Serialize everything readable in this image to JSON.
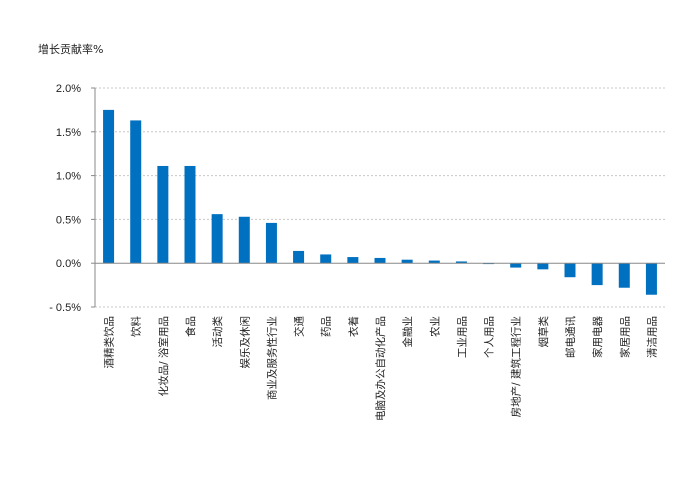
{
  "chart_data": {
    "type": "bar",
    "title": "",
    "ylabel": "增长贡献率%",
    "xlabel": "",
    "ylim": [
      -0.5,
      2.0
    ],
    "yticks": [
      {
        "value": 2.0,
        "label": "2.0%"
      },
      {
        "value": 1.5,
        "label": "1.5%"
      },
      {
        "value": 1.0,
        "label": "1.0%"
      },
      {
        "value": 0.5,
        "label": "0.5%"
      },
      {
        "value": 0.0,
        "label": "0.0%"
      },
      {
        "value": -0.5,
        "label": "- 0.5%"
      }
    ],
    "grid": true,
    "bar_color": "#0070C0",
    "categories": [
      "酒精类饮品",
      "饮料",
      "化妆品/ 浴室用品",
      "食品",
      "活动类",
      "娱乐及休闲",
      "商业及服务性行业",
      "交通",
      "药品",
      "衣着",
      "电脑及办公自动化产品",
      "金融业",
      "农业",
      "工业用品",
      "个人用品",
      "房地产/ 建筑工程行业",
      "烟草类",
      "邮电通讯",
      "家用电器",
      "家居用品",
      "清洁用品"
    ],
    "values": [
      1.75,
      1.63,
      1.11,
      1.11,
      0.56,
      0.53,
      0.46,
      0.14,
      0.1,
      0.07,
      0.06,
      0.04,
      0.03,
      0.02,
      -0.01,
      -0.05,
      -0.07,
      -0.16,
      -0.25,
      -0.28,
      -0.36
    ]
  }
}
